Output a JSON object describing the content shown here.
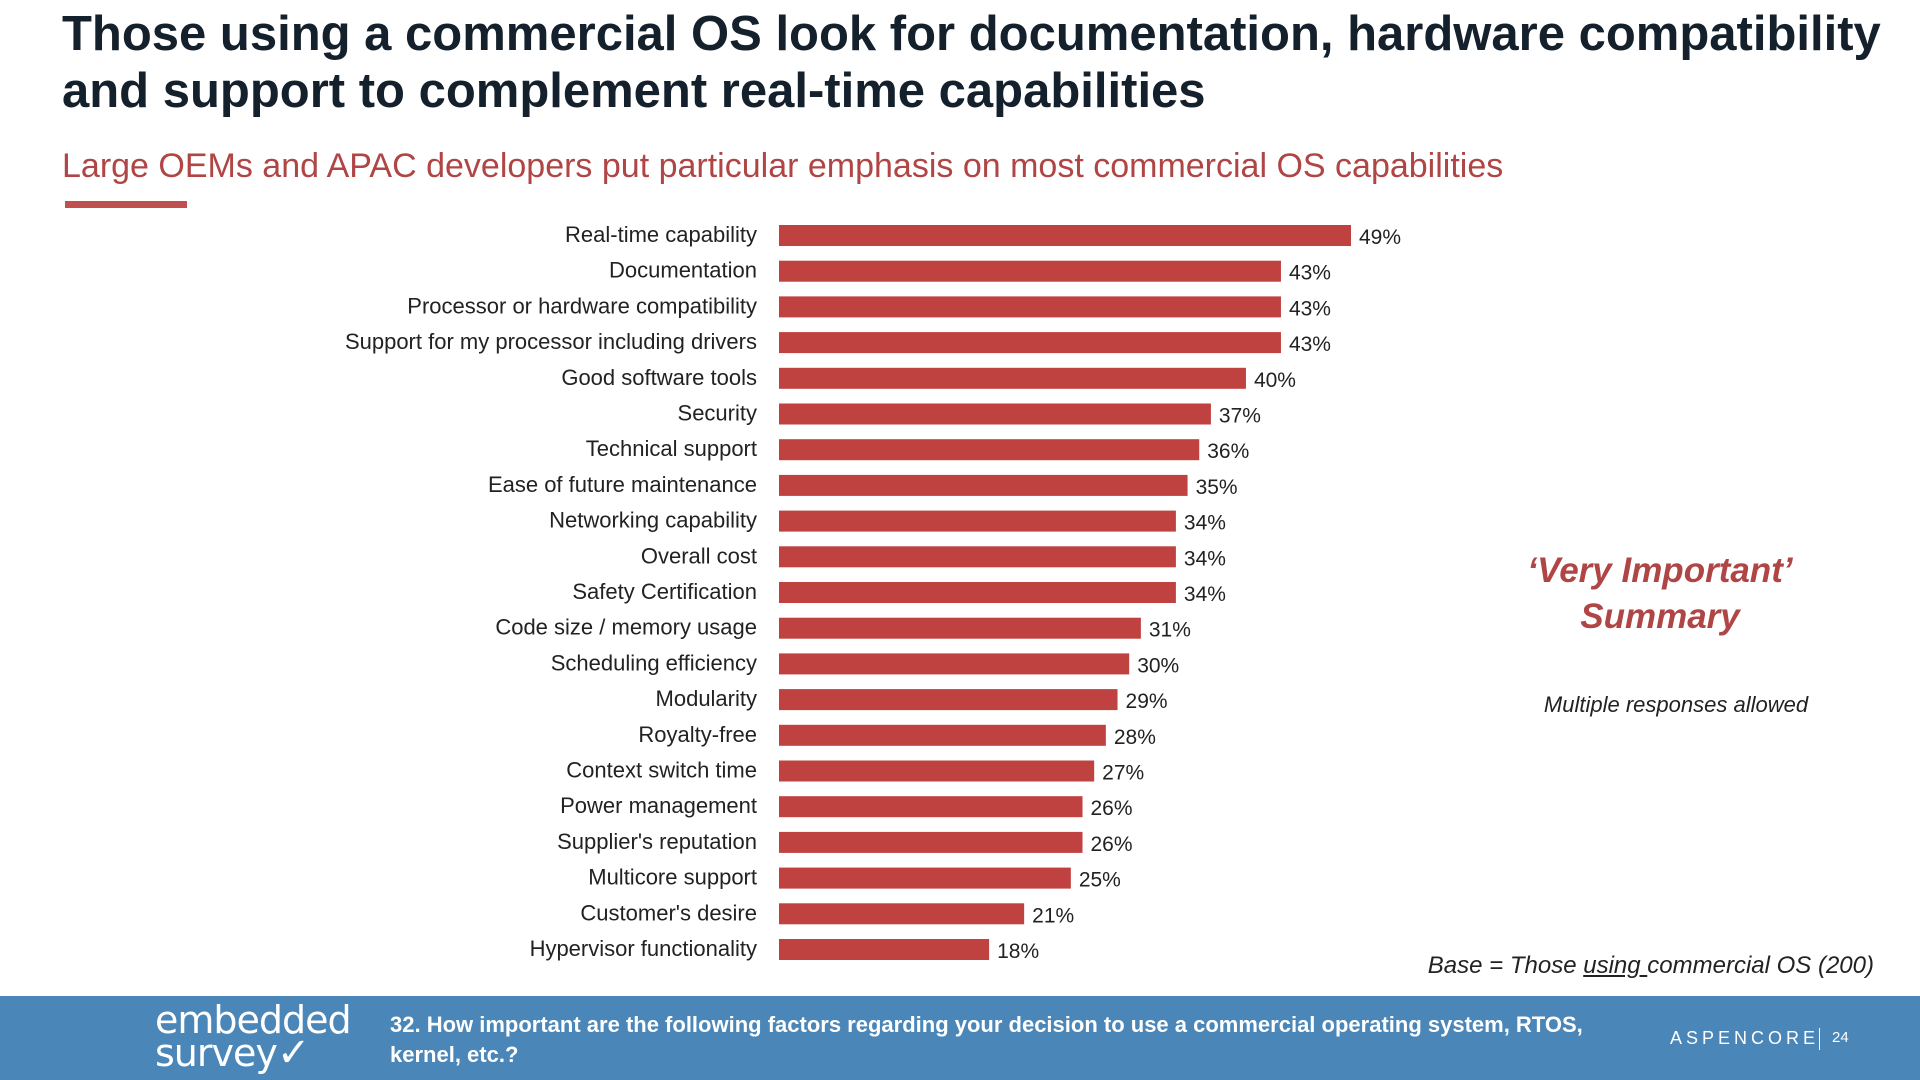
{
  "title": "Those using a commercial OS look for documentation, hardware compatibility and support to complement real-time capabilities",
  "subtitle": "Large OEMs and APAC developers put particular emphasis on most commercial OS capabilities",
  "side_summary": {
    "line1": "‘Very Important’",
    "line2": "Summary",
    "note": "Multiple responses allowed"
  },
  "base_note": {
    "prefix": "Base = Those ",
    "underlined": "using ",
    "suffix": "commercial OS (200)"
  },
  "footer": {
    "logo_line1": "embedded",
    "logo_line2": "survey",
    "logo_check": "✓",
    "question": "32. How important are the following factors regarding your decision to use a commercial operating system,  RTOS, kernel, etc.?",
    "brand": "ASPENCORE",
    "page_number": "24"
  },
  "colors": {
    "bar": "#bf4140",
    "accent": "#b04545",
    "footer_bg": "#4a86b8"
  },
  "chart_data": {
    "type": "bar",
    "orientation": "horizontal",
    "categories": [
      "Real-time capability",
      "Documentation",
      "Processor or hardware compatibility",
      "Support for my processor including drivers",
      "Good software tools",
      "Security",
      "Technical support",
      "Ease of future maintenance",
      "Networking capability",
      "Overall cost",
      "Safety Certification",
      "Code size / memory usage",
      "Scheduling efficiency",
      "Modularity",
      "Royalty-free",
      "Context switch time",
      "Power management",
      "Supplier's reputation",
      "Multicore support",
      "Customer's desire",
      "Hypervisor functionality"
    ],
    "values": [
      49,
      43,
      43,
      43,
      40,
      37,
      36,
      35,
      34,
      34,
      34,
      31,
      30,
      29,
      28,
      27,
      26,
      26,
      25,
      21,
      18
    ],
    "value_labels": [
      "49%",
      "43%",
      "43%",
      "43%",
      "40%",
      "37%",
      "36%",
      "35%",
      "34%",
      "34%",
      "34%",
      "31%",
      "30%",
      "29%",
      "28%",
      "27%",
      "26%",
      "26%",
      "25%",
      "21%",
      "18%"
    ],
    "unit": "%",
    "xlim": [
      0,
      49
    ],
    "grid": false,
    "legend": "none"
  }
}
